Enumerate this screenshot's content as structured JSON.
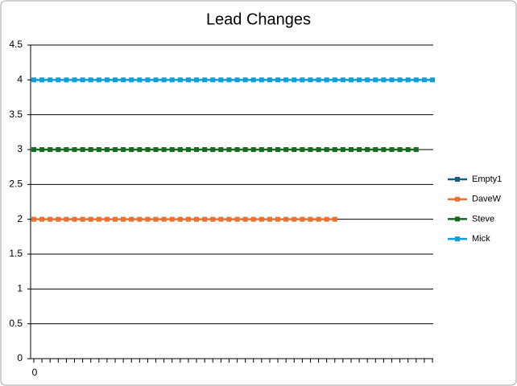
{
  "chart_data": {
    "type": "line",
    "title": "Lead Changes",
    "categories": [
      "0",
      null,
      null,
      null,
      null,
      null,
      null,
      null,
      null,
      null,
      null,
      null,
      null,
      null,
      null,
      null,
      null,
      null,
      null,
      null,
      null,
      null,
      null,
      null,
      null,
      null,
      null,
      null,
      null,
      null,
      null,
      null,
      null,
      null,
      null,
      null,
      null,
      null,
      null,
      null,
      null,
      null,
      null,
      null,
      null,
      null,
      null,
      null,
      null,
      null
    ],
    "series": [
      {
        "name": "Empty1",
        "color": "#156082",
        "values": [
          null,
          null,
          null,
          null,
          null,
          null,
          null,
          null,
          null,
          null,
          null,
          null,
          null,
          null,
          null,
          null,
          null,
          null,
          null,
          null,
          null,
          null,
          null,
          null,
          null,
          null,
          null,
          null,
          null,
          null,
          null,
          null,
          null,
          null,
          null,
          null,
          null,
          null,
          null,
          null,
          null,
          null,
          null,
          null,
          null,
          null,
          null,
          null,
          null,
          null
        ]
      },
      {
        "name": "DaveW",
        "color": "#e97132",
        "values": [
          2,
          2,
          2,
          2,
          2,
          2,
          2,
          2,
          2,
          2,
          2,
          2,
          2,
          2,
          2,
          2,
          2,
          2,
          2,
          2,
          2,
          2,
          2,
          2,
          2,
          2,
          2,
          2,
          2,
          2,
          2,
          2,
          2,
          2,
          2,
          2,
          2,
          2,
          null,
          null,
          null,
          null,
          null,
          null,
          null,
          null,
          null,
          null,
          null,
          null
        ]
      },
      {
        "name": "Steve",
        "color": "#196b24",
        "values": [
          3,
          3,
          3,
          3,
          3,
          3,
          3,
          3,
          3,
          3,
          3,
          3,
          3,
          3,
          3,
          3,
          3,
          3,
          3,
          3,
          3,
          3,
          3,
          3,
          3,
          3,
          3,
          3,
          3,
          3,
          3,
          3,
          3,
          3,
          3,
          3,
          3,
          3,
          3,
          3,
          3,
          3,
          3,
          3,
          3,
          3,
          3,
          3,
          null,
          null
        ]
      },
      {
        "name": "Mick",
        "color": "#0f9ed5",
        "values": [
          4,
          4,
          4,
          4,
          4,
          4,
          4,
          4,
          4,
          4,
          4,
          4,
          4,
          4,
          4,
          4,
          4,
          4,
          4,
          4,
          4,
          4,
          4,
          4,
          4,
          4,
          4,
          4,
          4,
          4,
          4,
          4,
          4,
          4,
          4,
          4,
          4,
          4,
          4,
          4,
          4,
          4,
          4,
          4,
          4,
          4,
          4,
          4,
          4,
          4
        ]
      }
    ],
    "ylim": [
      0,
      4.5
    ],
    "yticks": [
      0,
      0.5,
      1,
      1.5,
      2,
      2.5,
      3,
      3.5,
      4,
      4.5
    ],
    "grid": true,
    "legend": "right"
  }
}
